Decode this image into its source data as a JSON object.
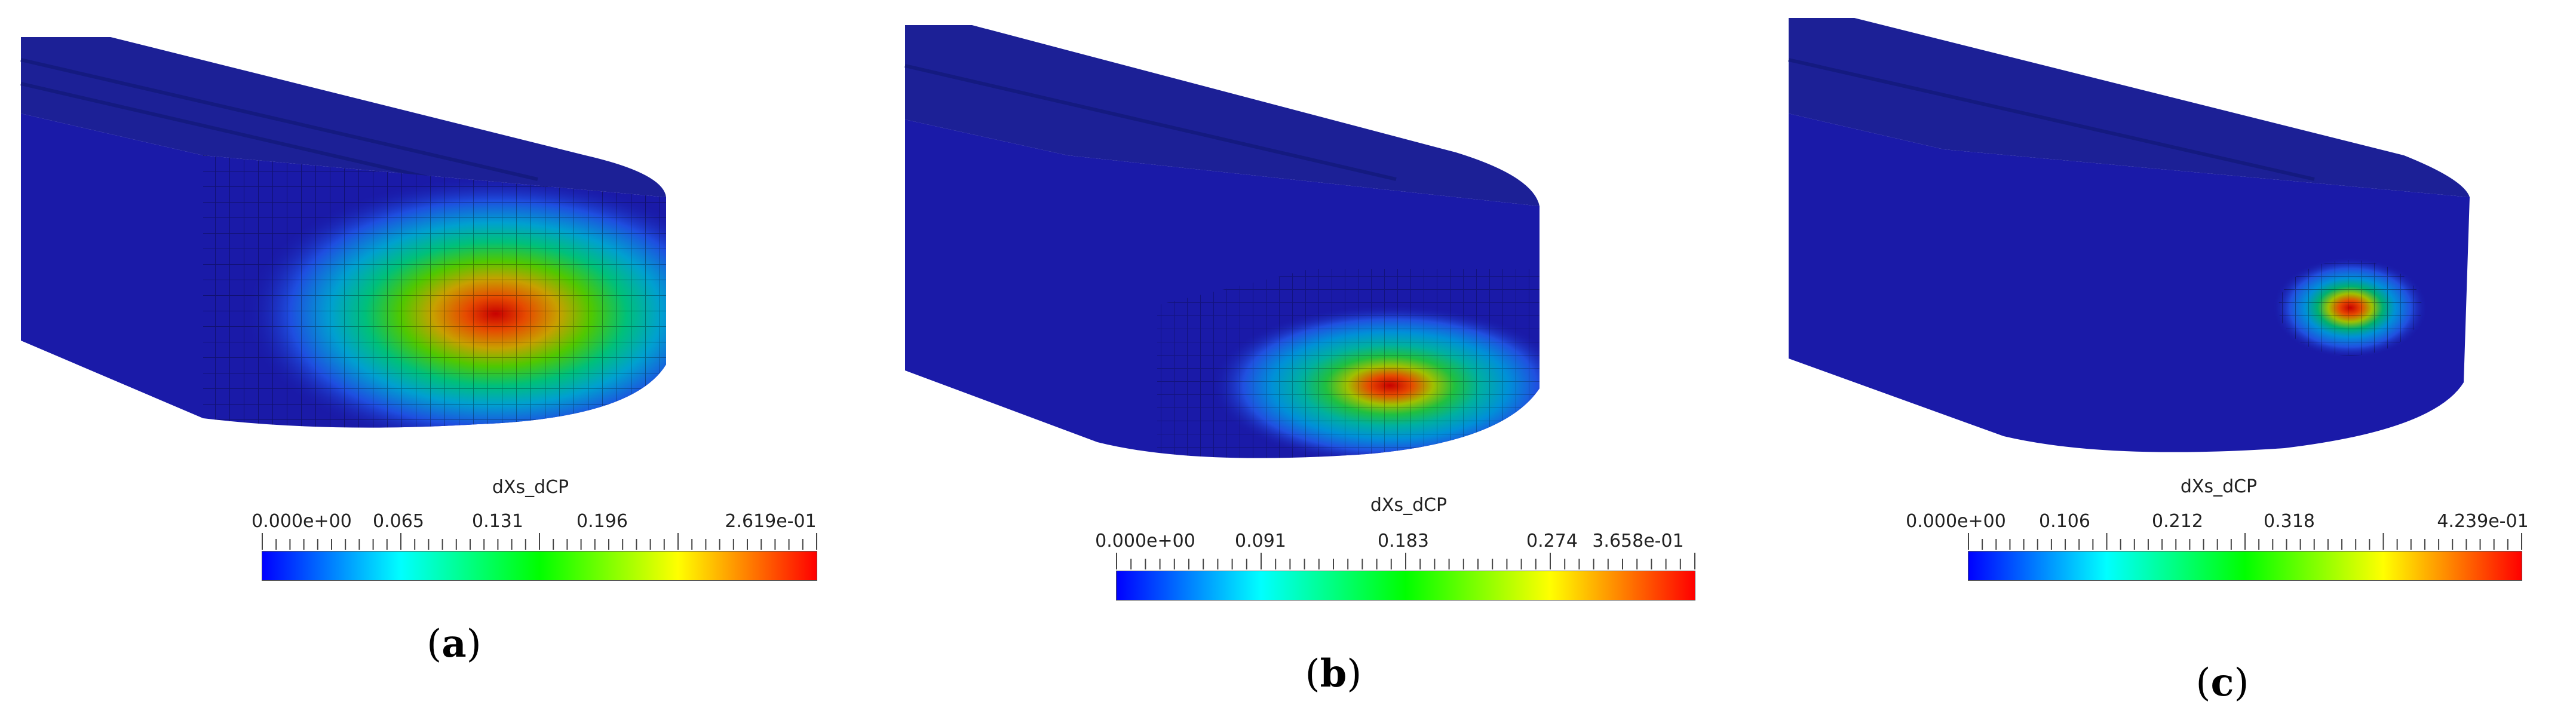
{
  "colors": {
    "blue": "#1a1aa8",
    "jet": [
      "#0000ff",
      "#0080ff",
      "#00ffff",
      "#00ff80",
      "#00ff00",
      "#80ff00",
      "#ffff00",
      "#ff8000",
      "#ff0000"
    ]
  },
  "panels": [
    {
      "id": "a",
      "label_letter": "a",
      "colorbar": {
        "title": "dXs_dCP",
        "ticks": [
          "0.000e+00",
          "0.065",
          "0.131",
          "0.196",
          "2.619e-01"
        ]
      }
    },
    {
      "id": "b",
      "label_letter": "b",
      "colorbar": {
        "title": "dXs_dCP",
        "ticks": [
          "0.000e+00",
          "0.091",
          "0.183",
          "0.274",
          "3.658e-01"
        ]
      }
    },
    {
      "id": "c",
      "label_letter": "c",
      "colorbar": {
        "title": "dXs_dCP",
        "ticks": [
          "0.000e+00",
          "0.106",
          "0.212",
          "0.318",
          "4.239e-01"
        ]
      }
    }
  ]
}
